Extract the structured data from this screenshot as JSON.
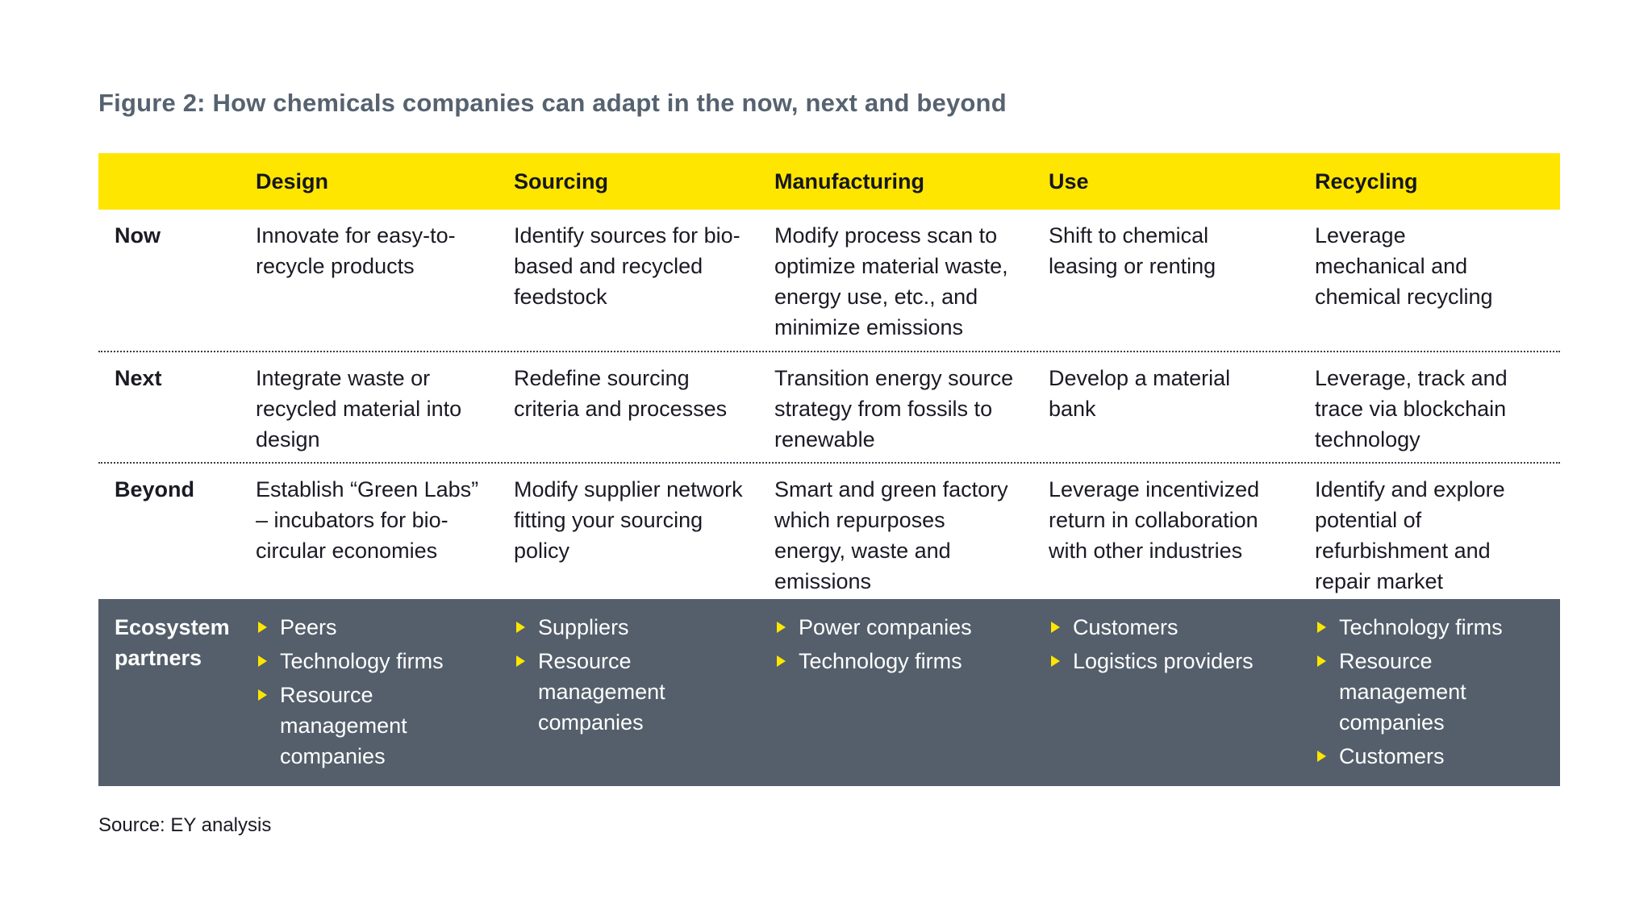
{
  "title": "Figure 2: How chemicals companies can adapt in the now, next and beyond",
  "source": "Source: EY analysis",
  "colors": {
    "accent_yellow": "#FFE600",
    "slate": "#545F6B",
    "title_gray": "#566270",
    "text_dark": "#1A1A24",
    "text_light": "#FFFFFF",
    "dot_color": "#3C3C46"
  },
  "table": {
    "columns": [
      "Design",
      "Sourcing",
      "Manufacturing",
      "Use",
      "Recycling"
    ],
    "rows": [
      {
        "label": "Now",
        "cells": [
          "Innovate for easy-to-recycle products",
          "Identify sources for bio-based and recycled feedstock",
          "Modify process scan to optimize material waste, energy use, etc., and minimize emissions",
          "Shift to chemical leasing or renting",
          "Leverage mechanical and chemical recycling"
        ]
      },
      {
        "label": "Next",
        "cells": [
          "Integrate waste or recycled material into design",
          "Redefine sourcing criteria and processes",
          "Transition energy source strategy from fossils to renewable",
          "Develop a material bank",
          "Leverage, track and trace via blockchain technology"
        ]
      },
      {
        "label": "Beyond",
        "cells": [
          "Establish “Green Labs” – incubators for bio-circular economies",
          "Modify supplier network fitting your sourcing policy",
          "Smart and green factory which repurposes energy, waste and emissions",
          "Leverage incentivized return in collaboration with other industries",
          "Identify and explore potential of refurbishment and repair market"
        ]
      }
    ],
    "ecosystem": {
      "label": "Ecosystem partners",
      "cells": [
        [
          "Peers",
          "Technology firms",
          "Resource management companies"
        ],
        [
          "Suppliers",
          "Resource management companies"
        ],
        [
          "Power companies",
          "Technology firms"
        ],
        [
          "Customers",
          "Logistics providers"
        ],
        [
          "Technology firms",
          "Resource management companies",
          "Customers"
        ]
      ]
    }
  }
}
